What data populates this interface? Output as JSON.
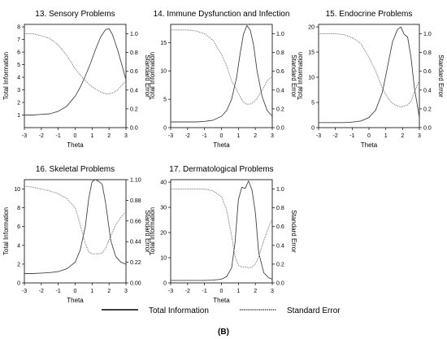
{
  "figure_label": "(B)",
  "legend": {
    "total_information": "Total Information",
    "standard_error": "Standard Error"
  },
  "chart_data": [
    {
      "type": "line",
      "title": "13. Sensory Problems",
      "xlabel": "Theta",
      "ylabel_left": "Total Information",
      "ylabel_right": "Standard Error",
      "xlim": [
        -3,
        3
      ],
      "xticks": [
        -3,
        -2,
        -1,
        0,
        1,
        2,
        3
      ],
      "ylim_left": [
        0,
        8.2
      ],
      "yticks_left": [
        1,
        2,
        3,
        4,
        5,
        6,
        7,
        8
      ],
      "ylim_right": [
        0,
        1.1
      ],
      "yticks_right": [
        0.0,
        0.2,
        0.4,
        0.6,
        0.8,
        1.0
      ],
      "series": [
        {
          "name": "Total Information",
          "axis": "left",
          "x": [
            -3,
            -2.5,
            -2,
            -1.5,
            -1,
            -0.5,
            0,
            0.3,
            0.6,
            0.9,
            1.2,
            1.5,
            1.8,
            2.0,
            2.2,
            2.5,
            2.8,
            3
          ],
          "y": [
            1.0,
            1.0,
            1.05,
            1.1,
            1.3,
            1.7,
            2.5,
            3.2,
            4.1,
            5.1,
            6.2,
            7.2,
            7.8,
            7.85,
            7.4,
            6.2,
            4.8,
            3.8
          ]
        },
        {
          "name": "Standard Error",
          "axis": "right",
          "x": [
            -3,
            -2.5,
            -2,
            -1.5,
            -1,
            -0.5,
            0,
            0.3,
            0.6,
            0.9,
            1.2,
            1.5,
            1.8,
            2.0,
            2.2,
            2.5,
            2.8,
            3
          ],
          "y": [
            1.0,
            1.0,
            0.98,
            0.95,
            0.88,
            0.77,
            0.63,
            0.56,
            0.5,
            0.45,
            0.41,
            0.38,
            0.36,
            0.36,
            0.37,
            0.4,
            0.46,
            0.5
          ]
        }
      ]
    },
    {
      "type": "line",
      "title": "14. Immune Dysfunction and Infection",
      "xlabel": "Theta",
      "ylabel_left": "Total Information",
      "ylabel_right": "Standard Error",
      "xlim": [
        -3,
        3
      ],
      "xticks": [
        -3,
        -2,
        -1,
        0,
        1,
        2,
        3
      ],
      "ylim_left": [
        0,
        18.2
      ],
      "yticks_left": [
        0,
        5,
        10,
        15
      ],
      "ylim_right": [
        0,
        1.1
      ],
      "yticks_right": [
        0.0,
        0.2,
        0.4,
        0.6,
        0.8,
        1.0
      ],
      "series": [
        {
          "name": "Total Information",
          "axis": "left",
          "x": [
            -3,
            -2.5,
            -2,
            -1.5,
            -1,
            -0.5,
            0,
            0.3,
            0.6,
            0.9,
            1.1,
            1.3,
            1.5,
            1.7,
            1.9,
            2.1,
            2.4,
            2.7,
            3
          ],
          "y": [
            1.0,
            1.0,
            1.0,
            1.0,
            1.1,
            1.3,
            2.0,
            3.0,
            5.0,
            9.0,
            13.0,
            16.5,
            18.0,
            17.2,
            14.5,
            10.0,
            5.5,
            3.0,
            2.0
          ]
        },
        {
          "name": "Standard Error",
          "axis": "right",
          "x": [
            -3,
            -2.5,
            -2,
            -1.5,
            -1,
            -0.5,
            0,
            0.3,
            0.6,
            0.9,
            1.1,
            1.3,
            1.5,
            1.7,
            1.9,
            2.1,
            2.4,
            2.7,
            3
          ],
          "y": [
            1.04,
            1.04,
            1.04,
            1.03,
            1.0,
            0.93,
            0.78,
            0.66,
            0.5,
            0.4,
            0.33,
            0.27,
            0.25,
            0.25,
            0.27,
            0.31,
            0.4,
            0.5,
            0.55
          ]
        }
      ]
    },
    {
      "type": "line",
      "title": "15. Endocrine Problems",
      "xlabel": "Theta",
      "ylabel_left": "Total Information",
      "ylabel_right": "Standard Error",
      "xlim": [
        -3,
        3
      ],
      "xticks": [
        -3,
        -2,
        -1,
        0,
        1,
        2,
        3
      ],
      "ylim_left": [
        0,
        20.5
      ],
      "yticks_left": [
        0,
        5,
        10,
        15,
        20
      ],
      "ylim_right": [
        0,
        1.1
      ],
      "yticks_right": [
        0.0,
        0.2,
        0.4,
        0.6,
        0.8,
        1.0
      ],
      "series": [
        {
          "name": "Total Information",
          "axis": "left",
          "x": [
            -3,
            -2.5,
            -2,
            -1.5,
            -1,
            -0.5,
            0,
            0.4,
            0.8,
            1.1,
            1.4,
            1.7,
            1.9,
            2.1,
            2.3,
            2.5,
            2.7,
            3
          ],
          "y": [
            1.0,
            1.0,
            1.0,
            1.0,
            1.1,
            1.3,
            2.0,
            3.5,
            7.0,
            12.0,
            17.0,
            19.5,
            20.0,
            18.5,
            18.0,
            14.0,
            8.0,
            2.0
          ]
        },
        {
          "name": "Standard Error",
          "axis": "right",
          "x": [
            -3,
            -2.5,
            -2,
            -1.5,
            -1,
            -0.5,
            0,
            0.4,
            0.8,
            1.1,
            1.4,
            1.7,
            1.9,
            2.1,
            2.3,
            2.5,
            2.7,
            3
          ],
          "y": [
            1.0,
            1.0,
            1.0,
            0.99,
            0.96,
            0.9,
            0.75,
            0.6,
            0.42,
            0.32,
            0.26,
            0.23,
            0.22,
            0.23,
            0.24,
            0.28,
            0.38,
            0.5
          ]
        }
      ]
    },
    {
      "type": "line",
      "title": "16. Skeletal Problems",
      "xlabel": "Theta",
      "ylabel_left": "Total Information",
      "ylabel_right": "Standard Error",
      "xlim": [
        -3,
        3
      ],
      "xticks": [
        -3,
        -2,
        -1,
        0,
        1,
        2,
        3
      ],
      "ylim_left": [
        0,
        11
      ],
      "yticks_left": [
        0,
        2,
        4,
        6,
        8,
        10
      ],
      "ylim_right": [
        0,
        1.1
      ],
      "yticks_right": [
        0.0,
        0.22,
        0.44,
        0.66,
        0.88,
        1.1
      ],
      "series": [
        {
          "name": "Total Information",
          "axis": "left",
          "x": [
            -3,
            -2.5,
            -2,
            -1.5,
            -1,
            -0.5,
            0,
            0.3,
            0.6,
            0.8,
            1.0,
            1.2,
            1.4,
            1.6,
            1.8,
            2.1,
            2.4,
            2.7,
            3
          ],
          "y": [
            1.0,
            1.0,
            1.05,
            1.1,
            1.2,
            1.5,
            2.2,
            3.5,
            6.0,
            9.0,
            10.8,
            11.0,
            10.8,
            10.5,
            8.5,
            4.5,
            2.8,
            2.2,
            2.0
          ]
        },
        {
          "name": "Standard Error",
          "axis": "right",
          "x": [
            -3,
            -2.5,
            -2,
            -1.5,
            -1,
            -0.5,
            0,
            0.3,
            0.6,
            0.8,
            1.0,
            1.2,
            1.4,
            1.6,
            1.8,
            2.1,
            2.4,
            2.7,
            3
          ],
          "y": [
            1.03,
            1.02,
            1.0,
            0.98,
            0.95,
            0.9,
            0.8,
            0.62,
            0.42,
            0.33,
            0.31,
            0.31,
            0.31,
            0.32,
            0.37,
            0.5,
            0.62,
            0.7,
            0.76
          ]
        }
      ]
    },
    {
      "type": "line",
      "title": "17. Dermatological Problems",
      "xlabel": "Theta",
      "ylabel_left": "Total Information",
      "ylabel_right": "Standard Error",
      "xlim": [
        -3,
        3
      ],
      "xticks": [
        -3,
        -2,
        -1,
        0,
        1,
        2,
        3
      ],
      "ylim_left": [
        0,
        41
      ],
      "yticks_left": [
        0,
        10,
        20,
        30,
        40
      ],
      "ylim_right": [
        0,
        1.1
      ],
      "yticks_right": [
        0.0,
        0.2,
        0.4,
        0.6,
        0.8,
        1.0
      ],
      "series": [
        {
          "name": "Total Information",
          "axis": "left",
          "x": [
            -3,
            -2.5,
            -2,
            -1.5,
            -1,
            -0.5,
            0,
            0.3,
            0.6,
            0.8,
            1.0,
            1.2,
            1.4,
            1.6,
            1.8,
            2.0,
            2.2,
            2.5,
            2.8,
            3
          ],
          "y": [
            1.0,
            1.0,
            1.0,
            1.0,
            1.0,
            1.1,
            1.5,
            2.5,
            6.0,
            16.0,
            33.0,
            38.0,
            37.5,
            40.5,
            37.0,
            28.0,
            12.0,
            4.0,
            2.0,
            1.5
          ]
        },
        {
          "name": "Standard Error",
          "axis": "right",
          "x": [
            -3,
            -2.5,
            -2,
            -1.5,
            -1,
            -0.5,
            0,
            0.3,
            0.6,
            0.8,
            1.0,
            1.2,
            1.4,
            1.6,
            1.8,
            2.0,
            2.2,
            2.5,
            2.8,
            3
          ],
          "y": [
            1.0,
            1.0,
            1.0,
            1.0,
            1.0,
            0.98,
            0.92,
            0.78,
            0.5,
            0.28,
            0.19,
            0.17,
            0.17,
            0.16,
            0.17,
            0.2,
            0.28,
            0.45,
            0.6,
            0.68
          ]
        }
      ]
    }
  ]
}
